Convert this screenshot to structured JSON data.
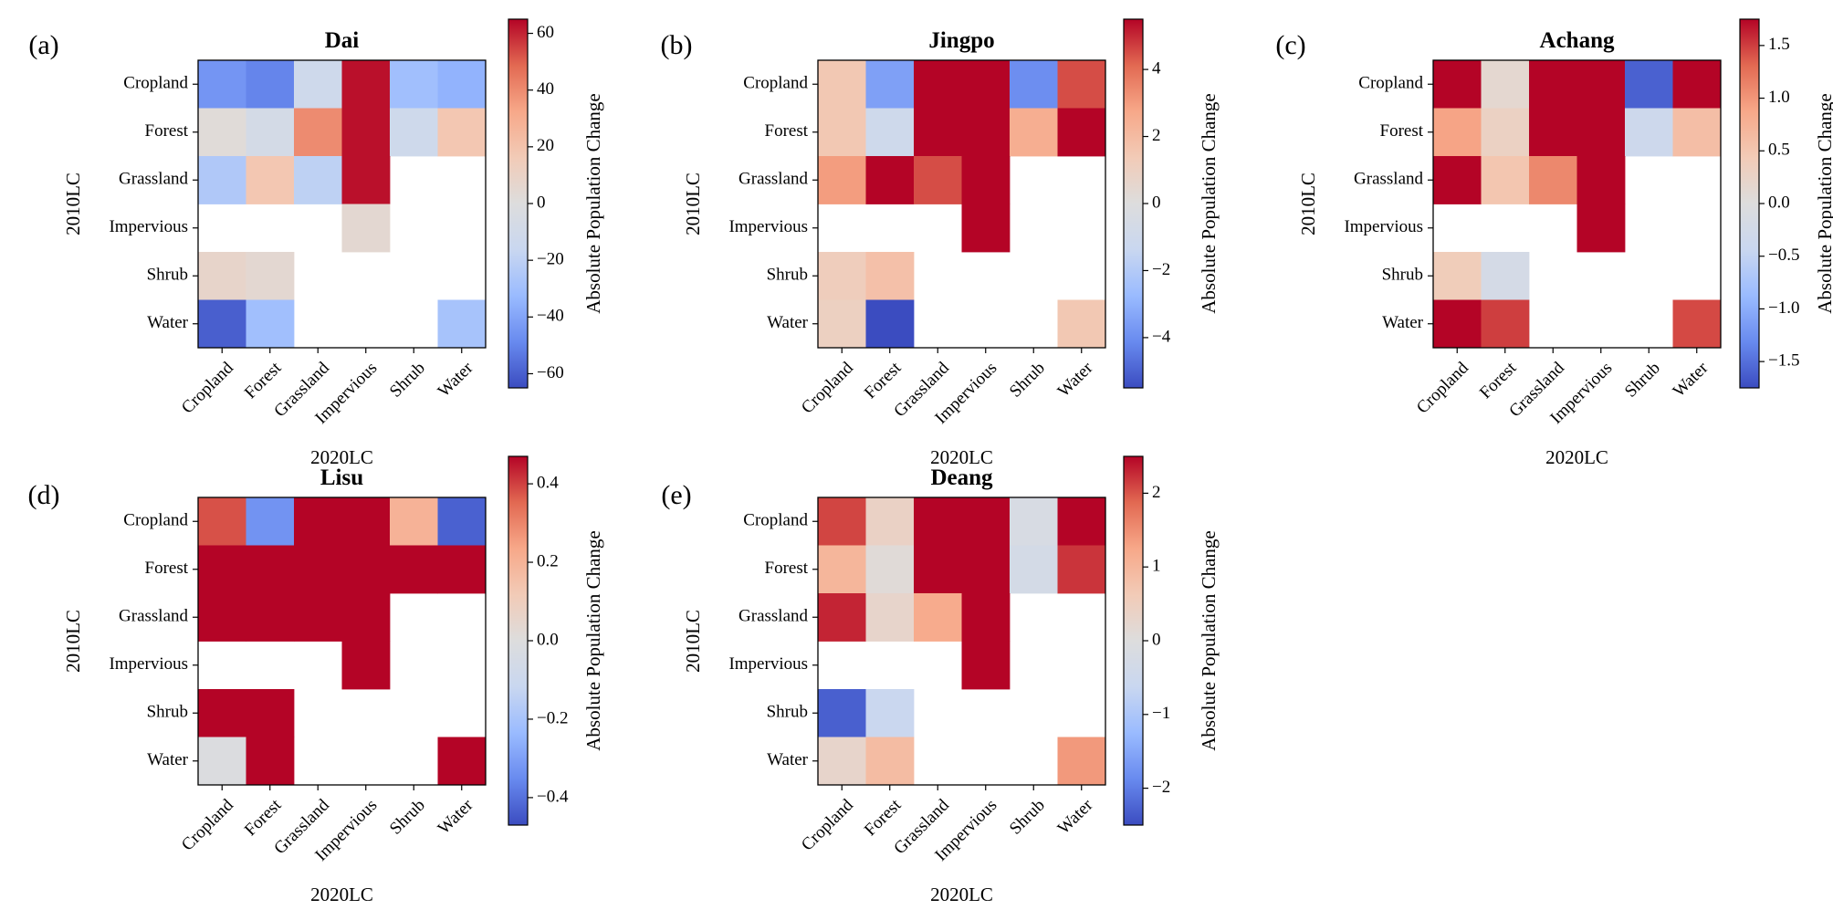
{
  "figure": {
    "xlabel": "2020LC",
    "ylabel": "2010LC",
    "colorbar_label": "Absolute Population Change",
    "colormap": [
      "#3b4cc0",
      "#688aef",
      "#9abbff",
      "#c9d7f0",
      "#dddddd",
      "#f2cbb7",
      "#f7a889",
      "#e26952",
      "#b40426"
    ]
  },
  "chart_data": [
    {
      "type": "heatmap",
      "panel": "(a)",
      "title": "Dai",
      "xlabel": "2020LC",
      "ylabel": "2010LC",
      "rows": [
        "Cropland",
        "Forest",
        "Grassland",
        "Impervious",
        "Shrub",
        "Water"
      ],
      "cols": [
        "Cropland",
        "Forest",
        "Grassland",
        "Impervious",
        "Shrub",
        "Water"
      ],
      "values": [
        [
          -45,
          -50,
          -12,
          63,
          -30,
          -35
        ],
        [
          2,
          -8,
          40,
          63,
          -12,
          18
        ],
        [
          -25,
          18,
          -20,
          63,
          null,
          null
        ],
        [
          null,
          null,
          null,
          5,
          null,
          null
        ],
        [
          8,
          5,
          null,
          null,
          null,
          null
        ],
        [
          -60,
          -30,
          null,
          null,
          null,
          -28
        ]
      ],
      "vmin": -65,
      "vmax": 65,
      "colorbar_ticks": [
        60,
        40,
        20,
        0,
        -20,
        -40,
        -60
      ],
      "colorbar_tick_labels": [
        "60",
        "40",
        "20",
        "0",
        "−20",
        "−40",
        "−60"
      ],
      "colorbar_label": "Absolute Population Change"
    },
    {
      "type": "heatmap",
      "panel": "(b)",
      "title": "Jingpo",
      "xlabel": "2020LC",
      "ylabel": "2010LC",
      "rows": [
        "Cropland",
        "Forest",
        "Grassland",
        "Impervious",
        "Shrub",
        "Water"
      ],
      "cols": [
        "Cropland",
        "Forest",
        "Grassland",
        "Impervious",
        "Shrub",
        "Water"
      ],
      "values": [
        [
          1.5,
          -3.5,
          5.5,
          5.5,
          -4,
          4.5
        ],
        [
          1.5,
          -1,
          5.5,
          5.5,
          2.5,
          5.5
        ],
        [
          3,
          5.5,
          4.5,
          5.5,
          null,
          null
        ],
        [
          null,
          null,
          null,
          5.5,
          null,
          null
        ],
        [
          1.2,
          1.8,
          null,
          null,
          null,
          null
        ],
        [
          1,
          -5.5,
          null,
          null,
          null,
          1.5
        ]
      ],
      "vmin": -5.5,
      "vmax": 5.5,
      "colorbar_ticks": [
        4,
        2,
        0,
        -2,
        -4
      ],
      "colorbar_tick_labels": [
        "4",
        "2",
        "0",
        "−2",
        "−4"
      ],
      "colorbar_label": "Absolute Population Change"
    },
    {
      "type": "heatmap",
      "panel": "(c)",
      "title": "Achang",
      "xlabel": "2020LC",
      "ylabel": "2010LC",
      "rows": [
        "Cropland",
        "Forest",
        "Grassland",
        "Impervious",
        "Shrub",
        "Water"
      ],
      "cols": [
        "Cropland",
        "Forest",
        "Grassland",
        "Impervious",
        "Shrub",
        "Water"
      ],
      "values": [
        [
          1.75,
          0.15,
          1.75,
          1.75,
          -1.6,
          1.75
        ],
        [
          0.9,
          0.3,
          1.75,
          1.75,
          -0.35,
          0.6
        ],
        [
          1.75,
          0.5,
          1.1,
          1.75,
          null,
          null
        ],
        [
          null,
          null,
          null,
          1.75,
          null,
          null
        ],
        [
          0.4,
          -0.2,
          null,
          null,
          null,
          null
        ],
        [
          1.75,
          1.5,
          null,
          null,
          null,
          1.45
        ]
      ],
      "vmin": -1.75,
      "vmax": 1.75,
      "colorbar_ticks": [
        1.5,
        1.0,
        0.5,
        0.0,
        -0.5,
        -1.0,
        -1.5
      ],
      "colorbar_tick_labels": [
        "1.5",
        "1.0",
        "0.5",
        "0.0",
        "−0.5",
        "−1.0",
        "−1.5"
      ],
      "colorbar_label": "Absolute Population Change"
    },
    {
      "type": "heatmap",
      "panel": "(d)",
      "title": "Lisu",
      "xlabel": "2020LC",
      "ylabel": "2010LC",
      "rows": [
        "Cropland",
        "Forest",
        "Grassland",
        "Impervious",
        "Shrub",
        "Water"
      ],
      "cols": [
        "Cropland",
        "Forest",
        "Grassland",
        "Impervious",
        "Shrub",
        "Water"
      ],
      "values": [
        [
          0.38,
          -0.33,
          0.47,
          0.47,
          0.2,
          -0.43
        ],
        [
          0.47,
          0.47,
          0.47,
          0.47,
          0.47,
          0.47
        ],
        [
          0.47,
          0.47,
          0.47,
          0.47,
          null,
          null
        ],
        [
          null,
          null,
          null,
          0.47,
          null,
          null
        ],
        [
          0.47,
          0.47,
          null,
          null,
          null,
          null
        ],
        [
          -0.01,
          0.47,
          null,
          null,
          null,
          0.47
        ]
      ],
      "vmin": -0.47,
      "vmax": 0.47,
      "colorbar_ticks": [
        0.4,
        0.2,
        0.0,
        -0.2,
        -0.4
      ],
      "colorbar_tick_labels": [
        "0.4",
        "0.2",
        "0.0",
        "−0.2",
        "−0.4"
      ],
      "colorbar_label": "Absolute Population Change"
    },
    {
      "type": "heatmap",
      "panel": "(e)",
      "title": "Deang",
      "xlabel": "2020LC",
      "ylabel": "2010LC",
      "rows": [
        "Cropland",
        "Forest",
        "Grassland",
        "Impervious",
        "Shrub",
        "Water"
      ],
      "cols": [
        "Cropland",
        "Forest",
        "Grassland",
        "Impervious",
        "Shrub",
        "Water"
      ],
      "values": [
        [
          2.1,
          0.4,
          2.5,
          2.5,
          -0.2,
          2.5
        ],
        [
          1,
          0.1,
          2.5,
          2.5,
          -0.3,
          2.2
        ],
        [
          2.3,
          0.3,
          1.2,
          2.5,
          null,
          null
        ],
        [
          null,
          null,
          null,
          2.5,
          null,
          null
        ],
        [
          -2.3,
          -0.6,
          null,
          null,
          null,
          null
        ],
        [
          0.3,
          0.9,
          null,
          null,
          null,
          1.4
        ]
      ],
      "vmin": -2.5,
      "vmax": 2.5,
      "colorbar_ticks": [
        2,
        1,
        0,
        -1,
        -2
      ],
      "colorbar_tick_labels": [
        "2",
        "1",
        "0",
        "−1",
        "−2"
      ],
      "colorbar_label": "Absolute Population Change"
    }
  ]
}
